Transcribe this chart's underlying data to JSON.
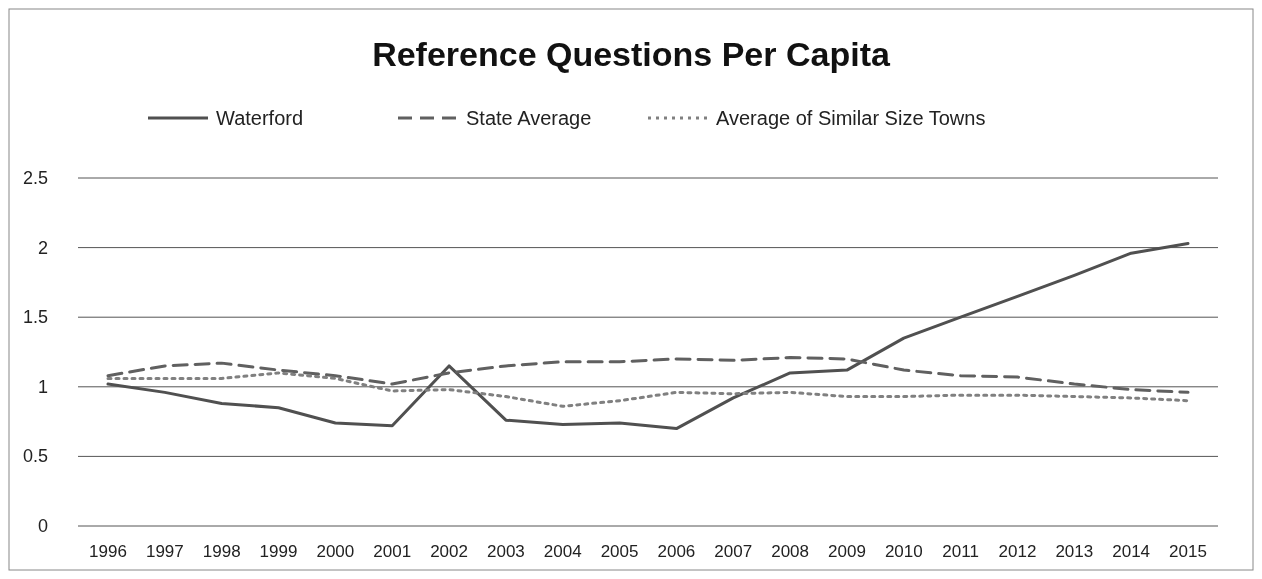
{
  "chart_data": {
    "type": "line",
    "title": "Reference Questions Per Capita",
    "categories": [
      "1996",
      "1997",
      "1998",
      "1999",
      "2000",
      "2001",
      "2002",
      "2003",
      "2004",
      "2005",
      "2006",
      "2007",
      "2008",
      "2009",
      "2010",
      "2011",
      "2012",
      "2013",
      "2014",
      "2015"
    ],
    "series": [
      {
        "name": "Waterford",
        "color": "#505050",
        "line_style": "solid",
        "values": [
          1.02,
          0.96,
          0.88,
          0.85,
          0.74,
          0.72,
          1.15,
          0.76,
          0.73,
          0.74,
          0.7,
          0.92,
          1.1,
          1.12,
          1.35,
          1.5,
          1.65,
          1.8,
          1.96,
          2.03
        ]
      },
      {
        "name": "State Average",
        "color": "#606060",
        "line_style": "dashed",
        "values": [
          1.08,
          1.15,
          1.17,
          1.12,
          1.08,
          1.02,
          1.1,
          1.15,
          1.18,
          1.18,
          1.2,
          1.19,
          1.21,
          1.2,
          1.12,
          1.08,
          1.07,
          1.02,
          0.98,
          0.96
        ]
      },
      {
        "name": "Average of Similar Size Towns",
        "color": "#808080",
        "line_style": "dotted",
        "values": [
          1.06,
          1.06,
          1.06,
          1.1,
          1.06,
          0.97,
          0.98,
          0.93,
          0.86,
          0.9,
          0.96,
          0.95,
          0.96,
          0.93,
          0.93,
          0.94,
          0.94,
          0.93,
          0.92,
          0.9
        ]
      }
    ],
    "ylim": [
      0,
      2.5
    ],
    "yticks": [
      0,
      0.5,
      1,
      1.5,
      2,
      2.5
    ],
    "grid": "y",
    "legend": "top",
    "marker": "none"
  }
}
